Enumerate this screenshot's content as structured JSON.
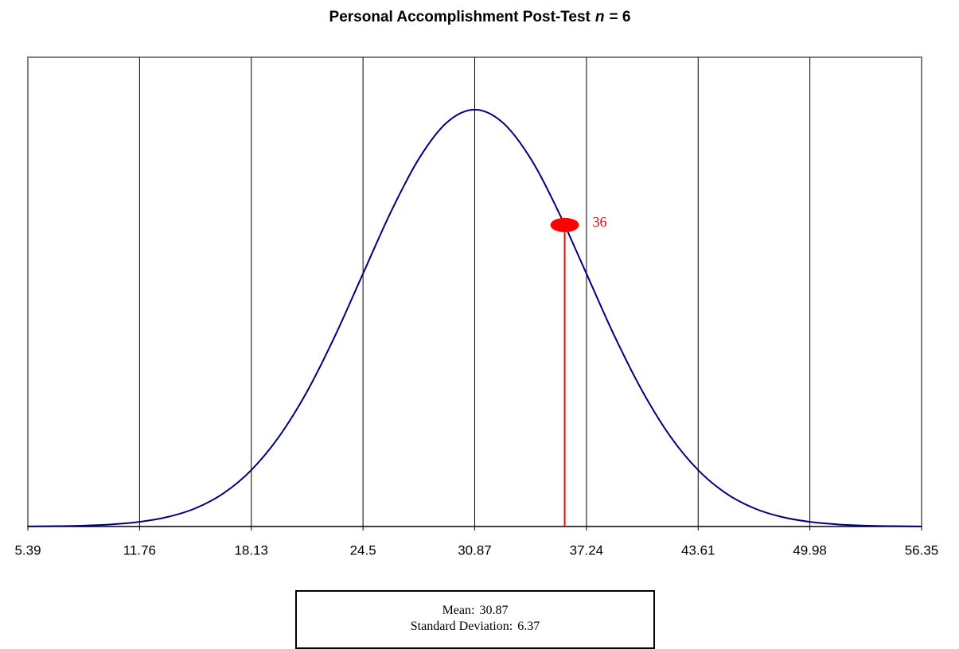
{
  "chart_data": {
    "type": "line",
    "title": [
      "Personal Accomplishment Post-Test",
      "n",
      "= 6"
    ],
    "x": [
      5.39,
      6.98,
      8.58,
      10.17,
      11.76,
      13.35,
      14.95,
      16.54,
      18.13,
      19.72,
      21.32,
      22.91,
      24.5,
      26.09,
      27.69,
      29.28,
      30.87,
      32.46,
      34.06,
      35.65,
      37.24,
      38.83,
      40.43,
      42.02,
      43.61,
      45.2,
      46.8,
      48.39,
      49.98,
      51.57,
      53.17,
      54.76,
      56.35
    ],
    "series": [
      {
        "color": "#000080",
        "values": [
          2e-05,
          6e-05,
          0.00014,
          0.00032,
          0.0007,
          0.00143,
          0.00275,
          0.00498,
          0.00848,
          0.01354,
          0.02033,
          0.02867,
          0.03799,
          0.04727,
          0.05527,
          0.0607,
          0.06263,
          0.0607,
          0.05527,
          0.04727,
          0.03799,
          0.02867,
          0.02033,
          0.01354,
          0.00848,
          0.00498,
          0.00275,
          0.00143,
          0.0007,
          0.00032,
          0.00014,
          6e-05,
          2e-05
        ]
      }
    ],
    "xlim": [
      5.39,
      56.35
    ],
    "ylim": [
      0,
      0.0705
    ],
    "xticks": [
      5.39,
      11.76,
      18.13,
      24.5,
      30.87,
      37.24,
      43.61,
      49.98,
      56.35
    ],
    "grid": true,
    "marker": {
      "x": 36,
      "y": 0.0453,
      "color": "#ff0000"
    },
    "stats": [
      {
        "label": "Mean:",
        "value": 30.87
      },
      {
        "label": "Standard Deviation:",
        "value": 6.37
      }
    ]
  }
}
